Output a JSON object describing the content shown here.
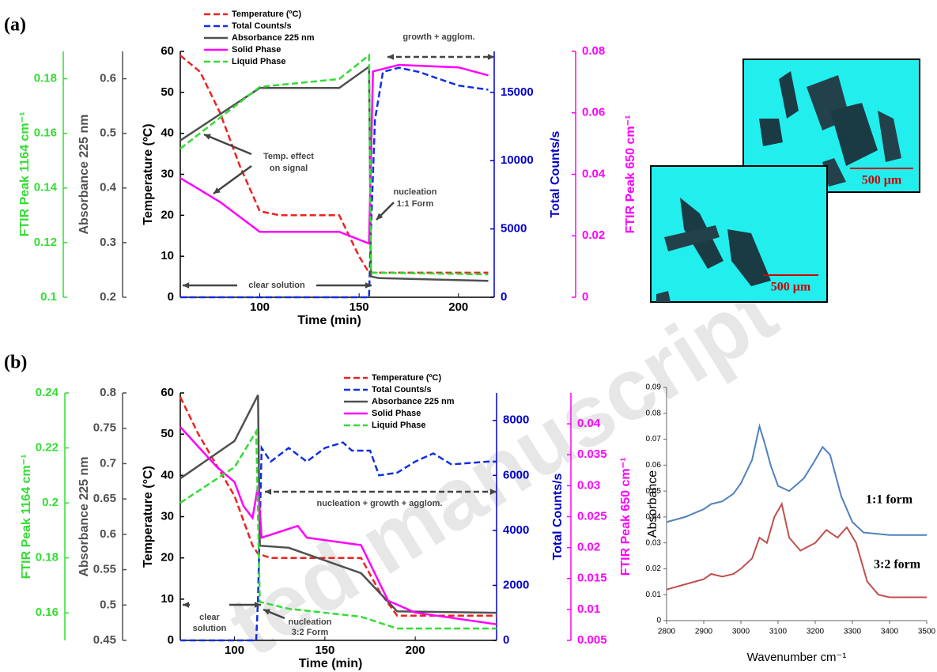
{
  "panel_labels": [
    "(a)",
    "(b)"
  ],
  "micrographs": [
    {
      "scale_bar": "500 μm"
    },
    {
      "scale_bar": "500 μm"
    }
  ],
  "watermark": "ted manuscript",
  "chart_data": [
    {
      "type": "line",
      "xlabel": "Time (min)",
      "xlim": [
        60,
        218
      ],
      "xticks": [
        100,
        150,
        200
      ],
      "ylabel": "Temperature (ºC)",
      "ylim": [
        0,
        60
      ],
      "yticks": [
        0,
        10,
        20,
        30,
        40,
        50,
        60
      ],
      "ycolor": "#000000",
      "y2label": "Total Counts/s",
      "y2lim": [
        0,
        18000
      ],
      "y2ticks": [
        0,
        5000,
        10000,
        15000
      ],
      "y2color": "#0000cc",
      "y3label": "FTIR Peak 650 cm⁻¹",
      "y3lim": [
        0,
        0.08
      ],
      "y3ticks": [
        0,
        0.02,
        0.04,
        0.06,
        0.08
      ],
      "y3color": "#ff00ff",
      "y4label": "Absorbance 225 nm",
      "y4lim": [
        0.2,
        0.65
      ],
      "y4ticks": [
        0.2,
        0.3,
        0.4,
        0.5,
        0.6
      ],
      "y4color": "#505050",
      "y5label": "FTIR Peak 1164 cm⁻¹",
      "y5lim": [
        0.1,
        0.19
      ],
      "y5ticks": [
        0.1,
        0.12,
        0.14,
        0.16,
        0.18
      ],
      "y5color": "#33dd33",
      "legend": "top-left",
      "series": [
        {
          "name": "Temperature (ºC)",
          "color": "#ee2222",
          "dash": true,
          "axis": "y",
          "x": [
            60,
            70,
            80,
            90,
            100,
            110,
            140,
            150,
            155,
            160,
            215
          ],
          "values": [
            59,
            55,
            45,
            32,
            21,
            20,
            20,
            10,
            6,
            6,
            6
          ]
        },
        {
          "name": "Total Counts/s",
          "color": "#1030e0",
          "dash": true,
          "axis": "y2",
          "x": [
            60,
            155,
            156,
            158,
            162,
            170,
            180,
            190,
            200,
            210,
            215
          ],
          "values": [
            0,
            0,
            5000,
            13000,
            16500,
            16800,
            16500,
            16000,
            15500,
            15300,
            15200
          ]
        },
        {
          "name": "Absorbance 225 nm",
          "color": "#505050",
          "dash": false,
          "axis": "y4",
          "x": [
            60,
            100,
            140,
            155,
            156,
            160,
            215
          ],
          "values": [
            0.487,
            0.583,
            0.583,
            0.622,
            0.238,
            0.235,
            0.23
          ]
        },
        {
          "name": "Solid Phase",
          "color": "#ff00ff",
          "dash": false,
          "axis": "y3",
          "x": [
            60,
            80,
            100,
            140,
            155,
            157,
            170,
            200,
            215
          ],
          "values": [
            0.0388,
            0.031,
            0.0213,
            0.0213,
            0.0175,
            0.0735,
            0.0756,
            0.0748,
            0.0722
          ]
        },
        {
          "name": "Liquid Phase",
          "color": "#33dd33",
          "dash": true,
          "axis": "y5",
          "x": [
            60,
            100,
            140,
            155,
            156,
            215
          ],
          "values": [
            0.1544,
            0.177,
            0.1799,
            0.1886,
            0.109,
            0.1084
          ]
        }
      ],
      "annotations": [
        "growth + agglom.",
        "Temp. effect",
        "on signal",
        "nucleation",
        "1:1 Form",
        "clear solution"
      ]
    },
    {
      "type": "line",
      "xlabel": "Time (min)",
      "xlim": [
        70,
        245
      ],
      "xticks": [
        100,
        150,
        200
      ],
      "ylabel": "Temperature (°C)",
      "ylim": [
        0,
        60
      ],
      "yticks": [
        0,
        10,
        20,
        30,
        40,
        50,
        60
      ],
      "ycolor": "#000000",
      "y2label": "Total Counts/s",
      "y2lim": [
        0,
        9000
      ],
      "y2ticks": [
        0,
        2000,
        4000,
        6000,
        8000
      ],
      "y2color": "#0000cc",
      "y3label": "FTIR Peak 650 cm⁻¹",
      "y3lim": [
        0.005,
        0.045
      ],
      "y3ticks": [
        0.005,
        0.01,
        0.015,
        0.02,
        0.025,
        0.03,
        0.035,
        0.04
      ],
      "y3color": "#ff00ff",
      "y4label": "Absorbance 225 nm",
      "y4lim": [
        0.45,
        0.8
      ],
      "y4ticks": [
        0.45,
        0.5,
        0.55,
        0.6,
        0.65,
        0.7,
        0.75,
        0.8
      ],
      "y4color": "#505050",
      "y5label": "FTIR Peak 1164 cm⁻¹",
      "y5lim": [
        0.15,
        0.24
      ],
      "y5ticks": [
        0.16,
        0.18,
        0.2,
        0.22,
        0.24
      ],
      "y5color": "#33dd33",
      "legend": "top-right",
      "series": [
        {
          "name": "Temperature (ºC)",
          "color": "#ee2222",
          "dash": true,
          "axis": "y",
          "x": [
            70,
            80,
            100,
            110,
            113,
            120,
            170,
            180,
            190,
            245
          ],
          "values": [
            59,
            50,
            35,
            23,
            21,
            20,
            20,
            12,
            6,
            6
          ]
        },
        {
          "name": "Total Counts/s",
          "color": "#1030e0",
          "dash": true,
          "axis": "y2",
          "x": [
            70,
            112,
            113,
            115,
            120,
            130,
            140,
            150,
            160,
            165,
            175,
            180,
            190,
            200,
            210,
            220,
            240,
            245
          ],
          "values": [
            0,
            0,
            1500,
            7000,
            6500,
            7000,
            6500,
            7000,
            7200,
            6900,
            6900,
            6000,
            6100,
            6500,
            6800,
            6400,
            6500,
            6500
          ]
        },
        {
          "name": "Absorbance 225 nm",
          "color": "#505050",
          "dash": false,
          "axis": "y4",
          "x": [
            70,
            100,
            113,
            114,
            130,
            170,
            190,
            245
          ],
          "values": [
            0.679,
            0.732,
            0.797,
            0.584,
            0.581,
            0.545,
            0.491,
            0.489
          ]
        },
        {
          "name": "Solid Phase",
          "color": "#ff00ff",
          "dash": false,
          "axis": "y3",
          "x": [
            70,
            90,
            100,
            105,
            110,
            113,
            115,
            135,
            140,
            170,
            185,
            200,
            245
          ],
          "values": [
            0.0395,
            0.0331,
            0.0306,
            0.0267,
            0.0248,
            0.03,
            0.0216,
            0.0235,
            0.0216,
            0.0204,
            0.0114,
            0.0095,
            0.0076
          ]
        },
        {
          "name": "Liquid Phase",
          "color": "#33dd33",
          "dash": true,
          "axis": "y5",
          "x": [
            70,
            100,
            112,
            114,
            130,
            170,
            190,
            245
          ],
          "values": [
            0.2,
            0.213,
            0.226,
            0.164,
            0.1615,
            0.1586,
            0.1543,
            0.1543
          ]
        }
      ],
      "annotations": [
        "nucleation + growth + agglom.",
        "clear",
        "solution",
        "nucleation",
        "3:2 Form"
      ]
    },
    {
      "type": "spectrum",
      "xlabel": "Wavenumber cm⁻¹",
      "xlim": [
        2800,
        3500
      ],
      "xticks": [
        2800,
        2900,
        3000,
        3100,
        3200,
        3300,
        3400,
        3500
      ],
      "ylabel": "Absorbance",
      "ylim": [
        0,
        0.09
      ],
      "yticks": [
        0,
        0.01,
        0.02,
        0.03,
        0.04,
        0.05,
        0.06,
        0.07,
        0.08,
        0.09
      ],
      "series": [
        {
          "name": "1:1 form",
          "color": "#4f81bd",
          "x": [
            2800,
            2850,
            2900,
            2920,
            2950,
            2980,
            3000,
            3030,
            3050,
            3065,
            3080,
            3100,
            3130,
            3170,
            3200,
            3220,
            3240,
            3270,
            3300,
            3330,
            3400,
            3500
          ],
          "values": [
            0.038,
            0.04,
            0.043,
            0.045,
            0.046,
            0.049,
            0.053,
            0.062,
            0.075,
            0.068,
            0.06,
            0.052,
            0.05,
            0.055,
            0.062,
            0.067,
            0.064,
            0.048,
            0.038,
            0.034,
            0.033,
            0.033
          ]
        },
        {
          "name": "3:2 form",
          "color": "#c0504d",
          "x": [
            2800,
            2850,
            2900,
            2920,
            2950,
            2980,
            3000,
            3030,
            3050,
            3070,
            3090,
            3110,
            3130,
            3160,
            3200,
            3230,
            3260,
            3285,
            3310,
            3340,
            3370,
            3400,
            3500
          ],
          "values": [
            0.012,
            0.014,
            0.016,
            0.018,
            0.017,
            0.018,
            0.02,
            0.024,
            0.032,
            0.03,
            0.04,
            0.045,
            0.032,
            0.027,
            0.03,
            0.035,
            0.032,
            0.036,
            0.03,
            0.015,
            0.01,
            0.009,
            0.009
          ]
        }
      ]
    }
  ]
}
